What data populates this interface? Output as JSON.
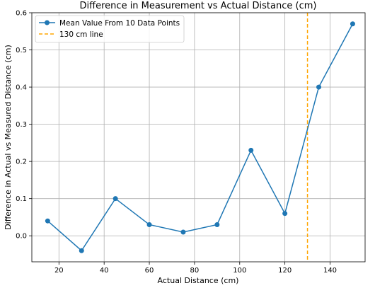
{
  "chart_data": {
    "type": "line",
    "title": "Difference in Measurement vs Actual Distance (cm)",
    "xlabel": "Actual Distance (cm)",
    "ylabel": "Difference in Actual vs Measured Distance (cm)",
    "xlim": [
      8,
      155.5
    ],
    "ylim": [
      -0.07,
      0.6
    ],
    "xticks": [
      20,
      40,
      60,
      80,
      100,
      120,
      140
    ],
    "yticks": [
      0.0,
      0.1,
      0.2,
      0.3,
      0.4,
      0.5,
      0.6
    ],
    "grid": true,
    "legend_position": "top-left",
    "series": [
      {
        "name": "Mean Value From 10 Data Points",
        "color": "#1f77b4",
        "marker": "circle",
        "x": [
          15,
          30,
          45,
          60,
          75,
          90,
          105,
          120,
          135,
          150
        ],
        "y": [
          0.04,
          -0.04,
          0.1,
          0.03,
          0.01,
          0.03,
          0.23,
          0.06,
          0.4,
          0.57
        ]
      }
    ],
    "reference_lines": [
      {
        "name": "130 cm line",
        "orientation": "vertical",
        "x": 130,
        "color": "#ffa500",
        "style": "dashed"
      }
    ]
  }
}
